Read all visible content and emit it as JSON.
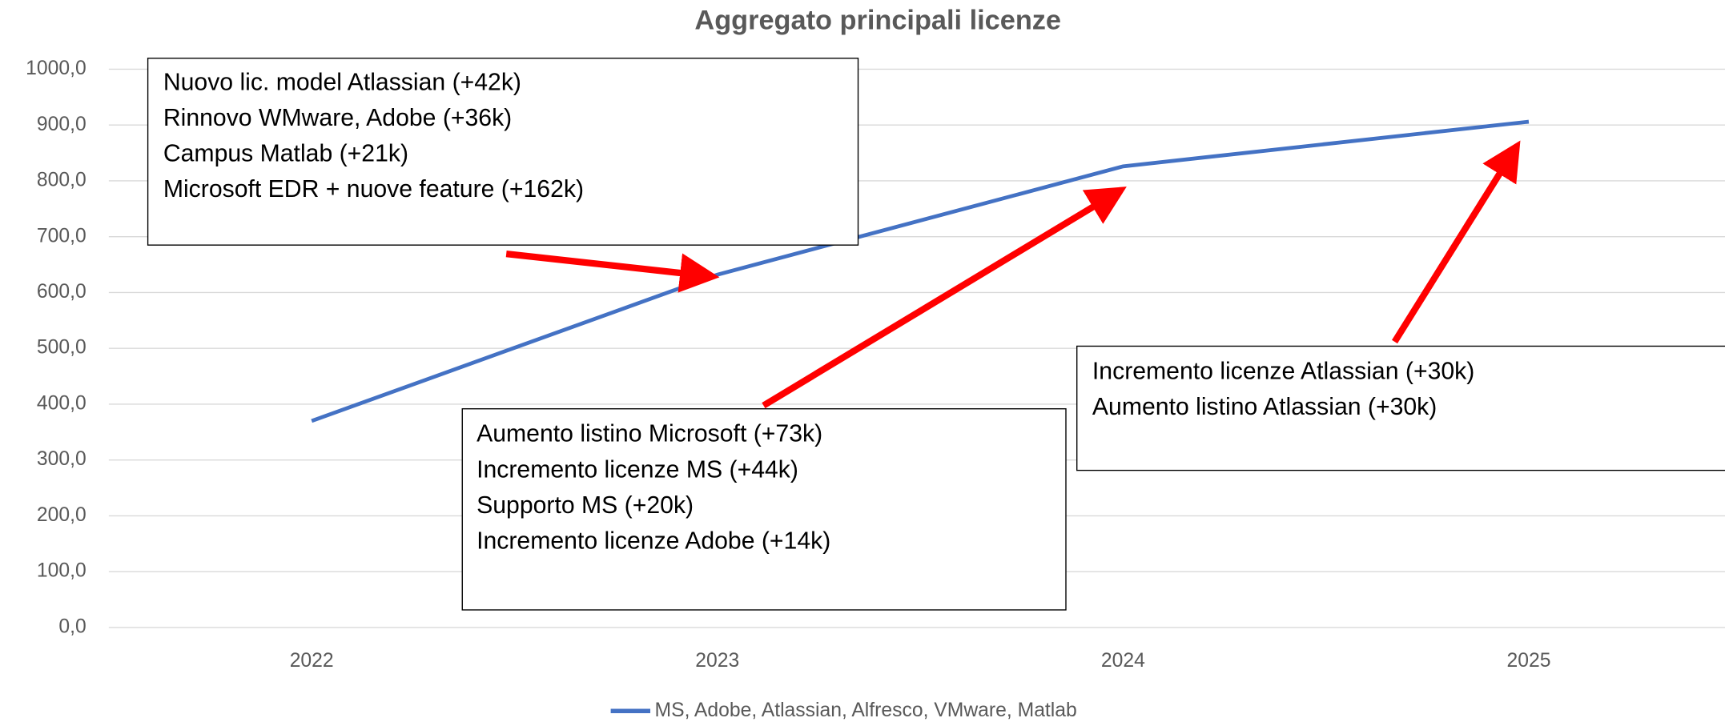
{
  "chart_data": {
    "type": "line",
    "title": "Aggregato principali licenze",
    "categories": [
      "2022",
      "2023",
      "2024",
      "2025"
    ],
    "series": [
      {
        "name": "MS, Adobe, Atlassian, Alfresco, VMware, Matlab",
        "color": "#4472c4",
        "values": [
          370,
          632,
          826,
          906
        ]
      }
    ],
    "ylim": [
      0,
      1000
    ],
    "yticks": [
      {
        "value": 0,
        "label": "0,0"
      },
      {
        "value": 100,
        "label": "100,0"
      },
      {
        "value": 200,
        "label": "200,0"
      },
      {
        "value": 300,
        "label": "300,0"
      },
      {
        "value": 400,
        "label": "400,0"
      },
      {
        "value": 500,
        "label": "500,0"
      },
      {
        "value": 600,
        "label": "600,0"
      },
      {
        "value": 700,
        "label": "700,0"
      },
      {
        "value": 800,
        "label": "800,0"
      },
      {
        "value": 900,
        "label": "900,0"
      },
      {
        "value": 1000,
        "label": "1000,0"
      }
    ],
    "grid": true,
    "legend": "bottom",
    "annotations": [
      {
        "lines": [
          "Nuovo lic. model Atlassian (+42k)",
          "Rinnovo WMware, Adobe (+36k)",
          "Campus Matlab (+21k)",
          "Microsoft EDR + nuove feature (+162k)"
        ]
      },
      {
        "lines": [
          "Aumento listino Microsoft (+73k)",
          "Incremento licenze MS (+44k)",
          "Supporto MS (+20k)",
          "Incremento licenze Adobe (+14k)"
        ]
      },
      {
        "lines": [
          "Incremento licenze Atlassian (+30k)",
          "Aumento listino Atlassian (+30k)"
        ]
      }
    ]
  }
}
